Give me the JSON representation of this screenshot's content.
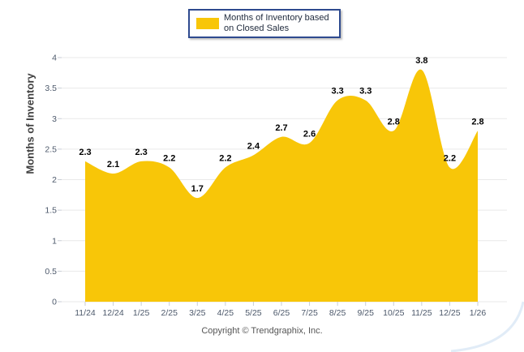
{
  "legend": {
    "lines": [
      "Months of Inventory based",
      "on Closed Sales"
    ]
  },
  "y_axis_label": "Months of Inventory",
  "footer": "Copyright © Trendgraphix, Inc.",
  "chart_data": {
    "type": "area",
    "categories": [
      "11/24",
      "12/24",
      "1/25",
      "2/25",
      "3/25",
      "4/25",
      "5/25",
      "6/25",
      "7/25",
      "8/25",
      "9/25",
      "10/25",
      "11/25",
      "12/25",
      "1/26"
    ],
    "values": [
      2.3,
      2.1,
      2.3,
      2.2,
      1.7,
      2.2,
      2.4,
      2.7,
      2.6,
      3.3,
      3.3,
      2.8,
      3.8,
      2.2,
      2.8
    ],
    "series_name": "Months of Inventory based on Closed Sales",
    "title": "",
    "xlabel": "",
    "ylabel": "Months of Inventory",
    "ylim": [
      0,
      4
    ],
    "ytick_step": 0.5,
    "grid": "horizontal",
    "legend_position": "top-center",
    "data_labels": true
  },
  "colors": {
    "area_fill": "#F8C608",
    "legend_border": "#2E4A8F",
    "grid_line": "#E9E9E9",
    "tick_mark": "#C9CED6",
    "axis_text": "#4D596B",
    "data_label": "#000000",
    "ylabel_text": "#3F3F3F",
    "footer_text": "#555555",
    "watermark_accent": "#C9DDF0"
  }
}
